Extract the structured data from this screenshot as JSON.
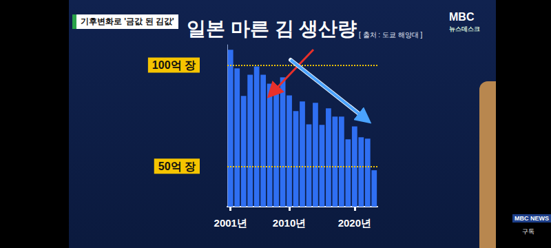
{
  "chart_data": {
    "type": "bar",
    "title": "일본 마른 김 생산량",
    "subtitle": "[ 출처 : 도쿄 해양대 ]",
    "annotations": [
      "기후변화로 '금값 된 김값'",
      "MBC",
      "뉴스데스크",
      "MBC NEWS",
      "구독"
    ],
    "categories": [
      "2001년",
      null,
      null,
      null,
      null,
      null,
      null,
      null,
      null,
      "2010년",
      null,
      null,
      null,
      null,
      null,
      null,
      null,
      null,
      null,
      "2020년",
      null,
      null,
      null
    ],
    "values": [
      107.5,
      98.3,
      84.7,
      95.2,
      99.3,
      95.2,
      90.8,
      86.4,
      93.9,
      85,
      77.2,
      82,
      70.7,
      81.3,
      70.4,
      78.6,
      74.5,
      74.5,
      63.3,
      69.7,
      64.3,
      63.6,
      48
    ],
    "color": "#2f6ff2",
    "ylim": [
      30,
      110
    ],
    "yticks": [
      {
        "value": 50,
        "label": "50억 장"
      },
      {
        "value": 100,
        "label": "100억 장"
      }
    ],
    "grid": true
  }
}
